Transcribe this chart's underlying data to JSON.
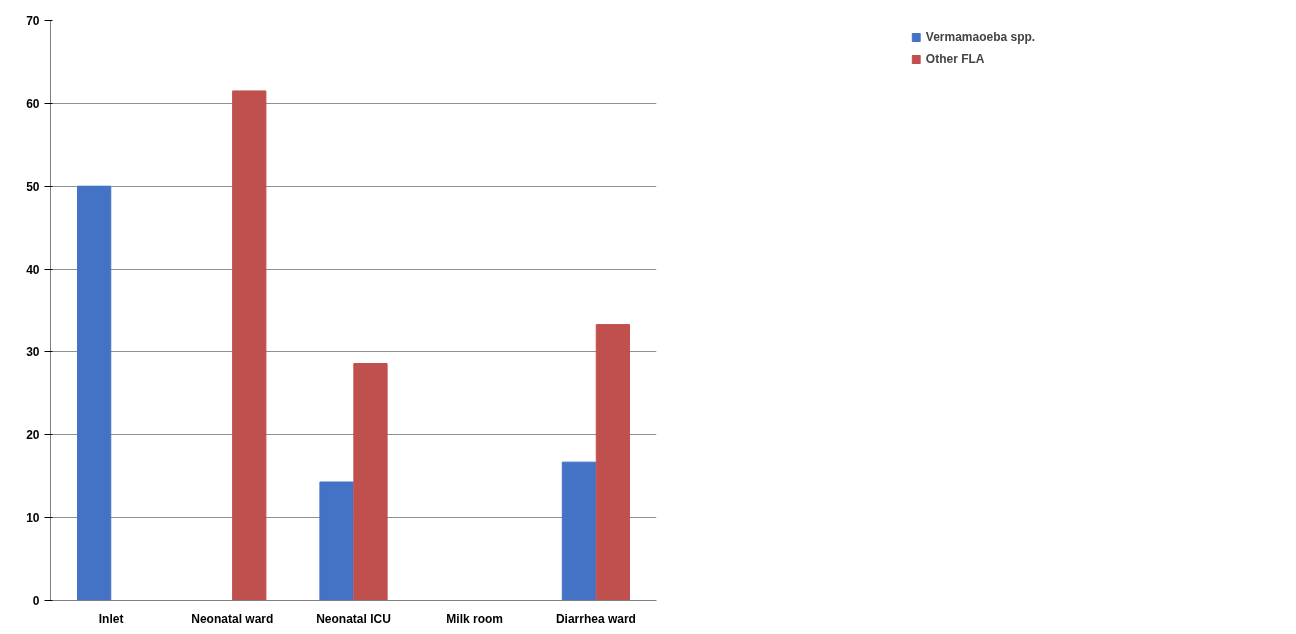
{
  "chart_data": {
    "type": "bar",
    "categories": [
      "Inlet",
      "Neonatal ward",
      "Neonatal ICU",
      "Milk room",
      "Diarrhea ward"
    ],
    "series": [
      {
        "name": "Vermamaoeba spp.",
        "color": "#4472c4",
        "values": [
          50,
          0,
          14.3,
          0,
          16.7
        ]
      },
      {
        "name": "Other FLA",
        "color": "#c0504d",
        "values": [
          0,
          61.5,
          28.6,
          0,
          33.3
        ]
      }
    ],
    "ylim": [
      0,
      70
    ],
    "yticks": [
      0,
      10,
      20,
      30,
      40,
      50,
      60,
      70
    ],
    "grid": "y",
    "legend": "top right"
  }
}
